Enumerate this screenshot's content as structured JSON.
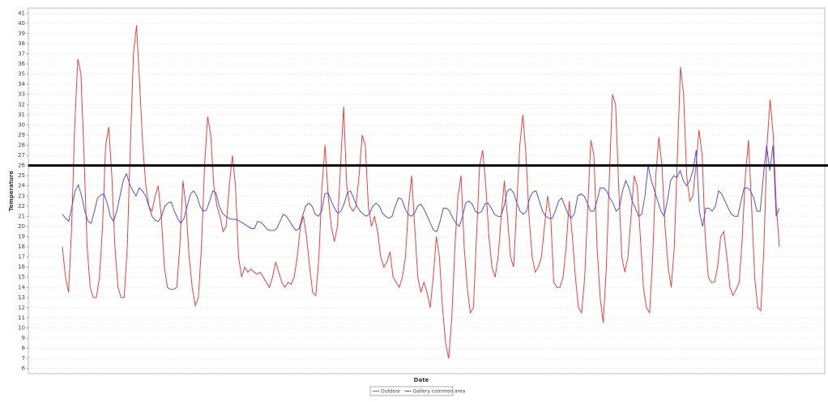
{
  "chart_data": {
    "type": "line",
    "y_label": "Temperature",
    "x_label": "Date",
    "ylim": [
      5.5,
      41.5
    ],
    "yticks": [
      6,
      7,
      8,
      9,
      10,
      11,
      12,
      13,
      14,
      15,
      16,
      17,
      18,
      19,
      20,
      21,
      22,
      23,
      24,
      25,
      26,
      27,
      28,
      29,
      30,
      31,
      32,
      33,
      34,
      35,
      36,
      37,
      38,
      39,
      40,
      41
    ],
    "grid": true,
    "legend": "bottom",
    "reference_line": {
      "value": 26,
      "color": "#000000"
    },
    "series": [
      {
        "name": "Outdoor",
        "color": "#f04040",
        "values": [
          18,
          15,
          13.5,
          20,
          30,
          36.5,
          35,
          27,
          18,
          14,
          13,
          13,
          15,
          20,
          28,
          29.8,
          25,
          18,
          14,
          13,
          13,
          18,
          28,
          37,
          39.8,
          34,
          28,
          24,
          22,
          21.5,
          23,
          24,
          21,
          16,
          14,
          13.8,
          13.8,
          14,
          18,
          24.5,
          22,
          17,
          14,
          12.2,
          13,
          18,
          26,
          30.8,
          29,
          24,
          22,
          21,
          19.5,
          20,
          24,
          27,
          24,
          17,
          15,
          16,
          15.5,
          15.8,
          15.5,
          15.3,
          15.5,
          15,
          14.5,
          14,
          15,
          16.5,
          15.5,
          14.5,
          14,
          14.5,
          14.3,
          15,
          17,
          20,
          21,
          19,
          16,
          13.5,
          13.2,
          17,
          24,
          28,
          23,
          20,
          18.5,
          20,
          26,
          31.8,
          24,
          22,
          21.5,
          22,
          25,
          29,
          28,
          22,
          20,
          21,
          19.5,
          17,
          16,
          16.5,
          17.5,
          15,
          14.5,
          14,
          15,
          17,
          22,
          25,
          20,
          15,
          13.5,
          14.5,
          13.5,
          12,
          15,
          19,
          17,
          12,
          8.5,
          7,
          11,
          18,
          23,
          25,
          18,
          14,
          11.5,
          12,
          19,
          26,
          27.5,
          24,
          19,
          16,
          15,
          17,
          21,
          24.5,
          21,
          17,
          16,
          22,
          28,
          31,
          27,
          21,
          17,
          15.5,
          16,
          17,
          20,
          23,
          21,
          14.5,
          14,
          14,
          15,
          18,
          22.5,
          19,
          15,
          12,
          11.5,
          15,
          22,
          28.5,
          27,
          18,
          13,
          10.5,
          16,
          25,
          33,
          32,
          24,
          17,
          15.5,
          17,
          21,
          25,
          24,
          19,
          14,
          12,
          11.5,
          17,
          25,
          28.8,
          26,
          20,
          16,
          14,
          18,
          27,
          35.7,
          33,
          25,
          22.5,
          23,
          26,
          29.5,
          27,
          19,
          15,
          14.5,
          14.5,
          16,
          19,
          19.5,
          17,
          14,
          13.2,
          13.8,
          14.5,
          19,
          25,
          28.5,
          22,
          15,
          12,
          11.7,
          18,
          28,
          32.5,
          29,
          22,
          18
        ]
      },
      {
        "name": "Gallery common area",
        "color": "#5050e8",
        "values": [
          21.2,
          20.8,
          20.5,
          22,
          23.5,
          24.1,
          23,
          21.5,
          20.5,
          20.3,
          21.5,
          22.8,
          23.1,
          23.2,
          22.3,
          21,
          20.5,
          21.5,
          23,
          24.5,
          25.2,
          24.2,
          23.5,
          23,
          23.8,
          23.5,
          23,
          22,
          21,
          20.6,
          20.5,
          21,
          22,
          22.3,
          22.4,
          21.5,
          20.8,
          20.3,
          20.8,
          22,
          23.2,
          23.5,
          23,
          22,
          21.5,
          21.6,
          22.5,
          23.5,
          23.3,
          22,
          21.3,
          21,
          20.8,
          20.7,
          20.7,
          20.6,
          20.4,
          20.2,
          20,
          19.8,
          19.8,
          20.5,
          20.4,
          20.1,
          19.7,
          19.6,
          19.6,
          19.8,
          20.5,
          21.2,
          21,
          20.5,
          20,
          19.6,
          19.8,
          21,
          22,
          22.3,
          22,
          21.2,
          21,
          21.5,
          23.2,
          23.3,
          22.5,
          21.8,
          21.3,
          21.5,
          22.2,
          23.3,
          23.5,
          22.8,
          22,
          21.5,
          21.2,
          21,
          21.3,
          22,
          22.3,
          22,
          21.3,
          21,
          20.8,
          21,
          22,
          22.8,
          22.7,
          21.8,
          21.2,
          21,
          21.3,
          22,
          22.2,
          21.7,
          21,
          20.3,
          19.6,
          19.5,
          20.5,
          21.8,
          21.8,
          21.5,
          20.8,
          20.3,
          20,
          21,
          22.3,
          22.5,
          22.2,
          21.5,
          21.3,
          21.5,
          22.2,
          22.3,
          21.8,
          21.2,
          21,
          21,
          22,
          23.5,
          23.7,
          23.3,
          22.3,
          21.5,
          21.2,
          21.5,
          22.8,
          23.4,
          23.5,
          22.5,
          21.5,
          21,
          20.8,
          20.8,
          21.5,
          22.5,
          22.8,
          22,
          21.2,
          20.8,
          21.3,
          23,
          23.2,
          23,
          22.3,
          21.5,
          21.5,
          22.5,
          23.8,
          23.8,
          23.5,
          22.8,
          22.3,
          21.5,
          21.8,
          23.5,
          24.5,
          23.8,
          22.5,
          21.8,
          21,
          21.2,
          23,
          26,
          24.5,
          23.5,
          22.5,
          21.5,
          21,
          22.5,
          24.5,
          25,
          24.8,
          25.5,
          24.5,
          24,
          24.5,
          25.5,
          27.5,
          21.5,
          20,
          21.8,
          21.8,
          21.5,
          22,
          23.5,
          23.2,
          22.5,
          21.8,
          21.2,
          21,
          21,
          22.5,
          23.8,
          23.8,
          23.5,
          22.8,
          21.5,
          21.5,
          25,
          28,
          25.5,
          28,
          21,
          21.8
        ]
      }
    ]
  }
}
